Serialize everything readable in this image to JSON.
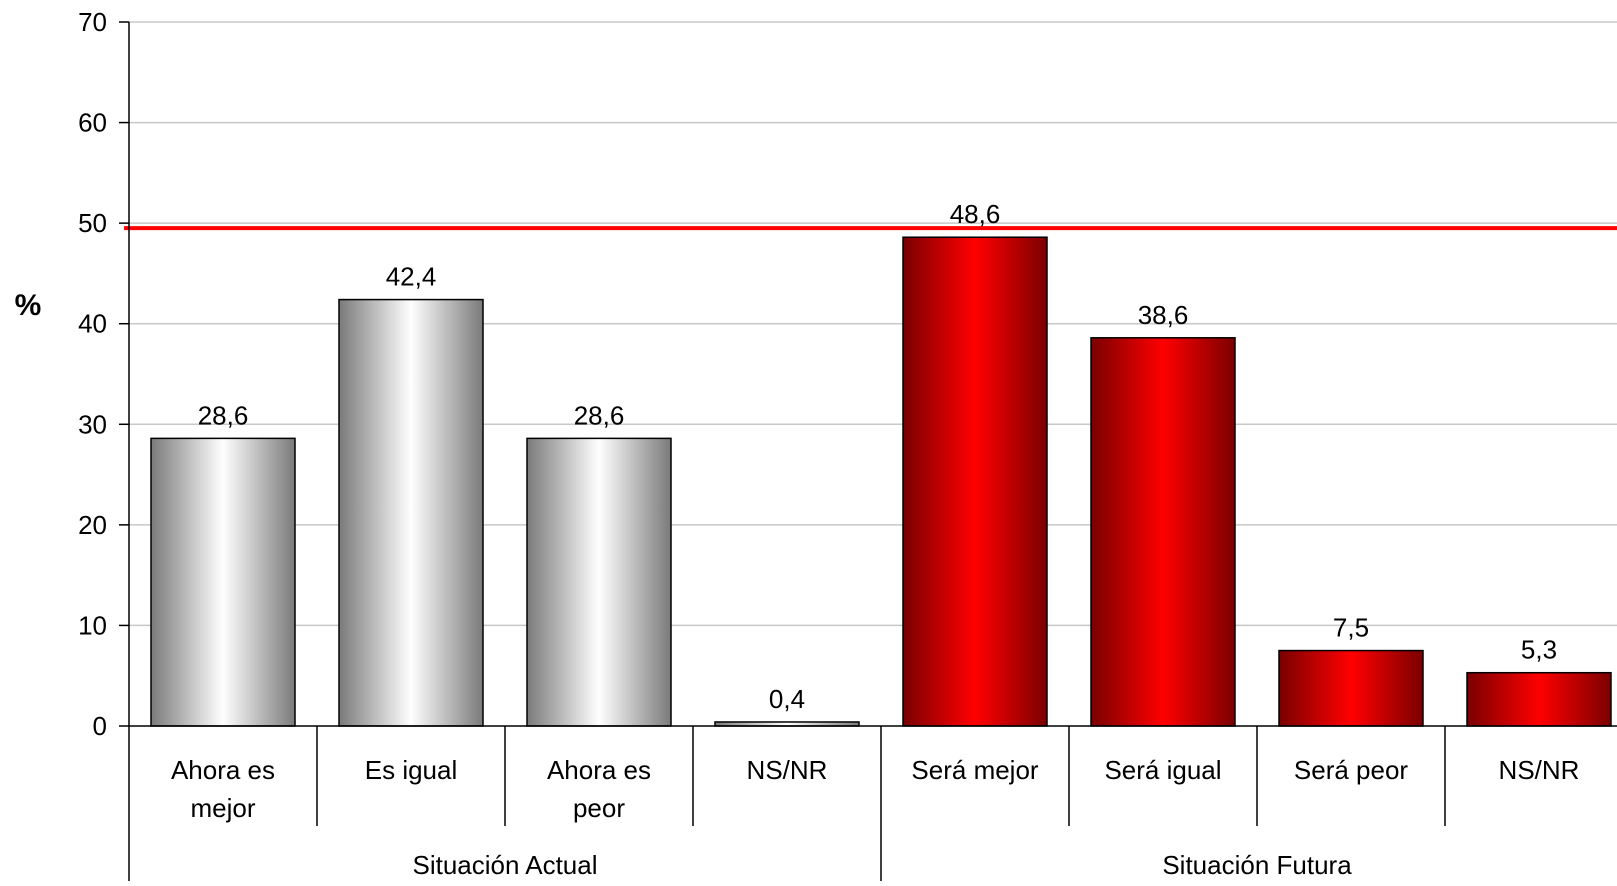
{
  "chart_data": {
    "type": "bar",
    "ylabel": "%",
    "ylim": [
      0,
      70
    ],
    "yticks": [
      0,
      10,
      20,
      30,
      40,
      50,
      60,
      70
    ],
    "grid": true,
    "categories": [
      [
        "Ahora es",
        "mejor"
      ],
      [
        "Es igual"
      ],
      [
        "Ahora es",
        "peor"
      ],
      [
        "NS/NR"
      ],
      [
        "Será mejor"
      ],
      [
        "Será igual"
      ],
      [
        "Será peor"
      ],
      [
        "NS/NR"
      ]
    ],
    "values": [
      28.6,
      42.4,
      28.6,
      0.4,
      48.6,
      38.6,
      7.5,
      5.3
    ],
    "data_labels": [
      "28,6",
      "42,4",
      "28,6",
      "0,4",
      "48,6",
      "38,6",
      "7,5",
      "5,3"
    ],
    "groups": [
      {
        "name": "Situación Actual",
        "count": 4,
        "color": "#c0c0c0"
      },
      {
        "name": "Situación Futura",
        "count": 4,
        "color": "#ff0000"
      }
    ],
    "reference_line": {
      "value": 49.5,
      "color": "#ff0000"
    }
  }
}
